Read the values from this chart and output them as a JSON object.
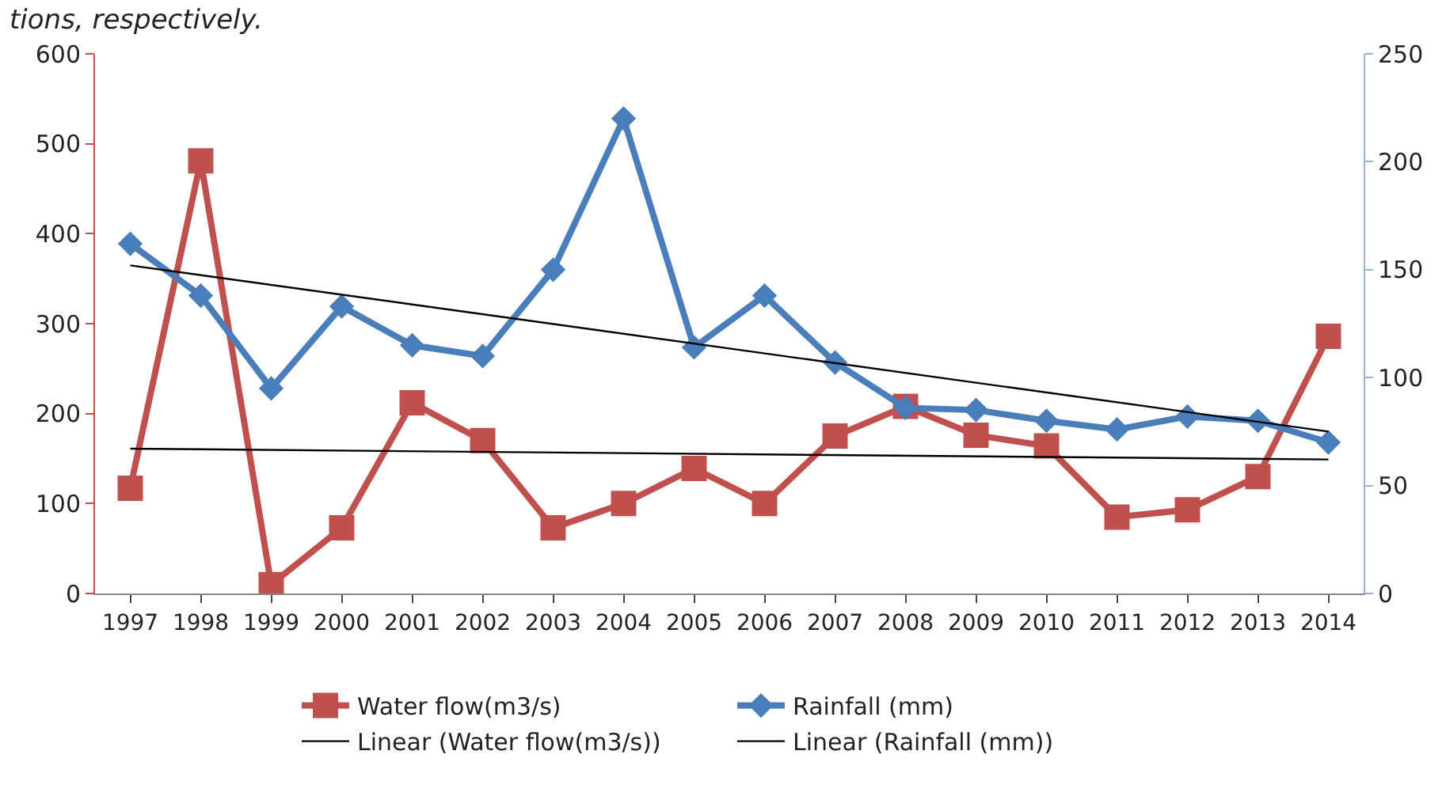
{
  "chart_data": {
    "type": "line",
    "annotations": [
      "tions, respectively."
    ],
    "categories": [
      "1997",
      "1998",
      "1999",
      "2000",
      "2001",
      "2002",
      "2003",
      "2004",
      "2005",
      "2006",
      "2007",
      "2008",
      "2009",
      "2010",
      "2011",
      "2012",
      "2013",
      "2014"
    ],
    "series": [
      {
        "name": "Water flow(m3/s)",
        "color": "#c0504d",
        "marker": "square",
        "values": [
          117,
          481,
          10,
          73,
          212,
          170,
          73,
          100,
          139,
          100,
          175,
          208,
          176,
          164,
          85,
          93,
          130,
          286
        ]
      },
      {
        "name": "Rainfall (mm)",
        "color": "#4a7ebb",
        "marker": "diamond",
        "axis": "y2",
        "values": [
          162,
          138,
          95,
          133,
          115,
          110,
          150,
          220,
          114,
          138,
          107,
          86,
          85,
          80,
          76,
          82,
          80,
          70
        ]
      },
      {
        "name": "Linear (Water flow(m3/s))",
        "color": "#000000",
        "marker": "none",
        "values": [
          161,
          null,
          null,
          null,
          null,
          null,
          null,
          null,
          null,
          null,
          null,
          null,
          null,
          null,
          null,
          null,
          null,
          149
        ]
      },
      {
        "name": "Linear (Rainfall (mm))",
        "color": "#000000",
        "marker": "none",
        "axis": "y2",
        "values": [
          152,
          null,
          null,
          null,
          null,
          null,
          null,
          null,
          null,
          null,
          null,
          null,
          null,
          null,
          null,
          null,
          null,
          75
        ]
      }
    ],
    "ylim": [
      0,
      600
    ],
    "yticks": [
      0,
      100,
      200,
      300,
      400,
      500,
      600
    ],
    "y2lim": [
      0,
      250
    ],
    "y2ticks": [
      0,
      50,
      100,
      150,
      200,
      250
    ],
    "legend": "bottom"
  }
}
